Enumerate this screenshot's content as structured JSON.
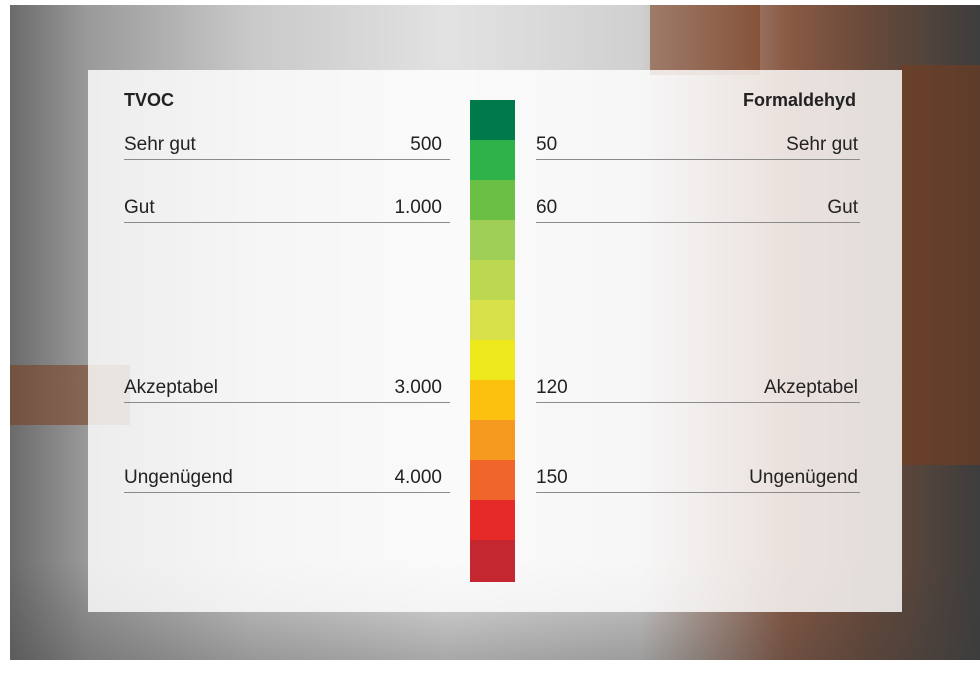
{
  "left": {
    "title": "TVOC",
    "rows": [
      {
        "label": "Sehr gut",
        "value": "500"
      },
      {
        "label": "Gut",
        "value": "1.000"
      },
      {
        "label": "Akzeptabel",
        "value": "3.000"
      },
      {
        "label": "Ungenügend",
        "value": "4.000"
      }
    ]
  },
  "right": {
    "title": "Formaldehyd",
    "rows": [
      {
        "label": "Sehr gut",
        "value": "50"
      },
      {
        "label": "Gut",
        "value": "60"
      },
      {
        "label": "Akzeptabel",
        "value": "120"
      },
      {
        "label": "Ungenügend",
        "value": "150"
      }
    ]
  }
}
